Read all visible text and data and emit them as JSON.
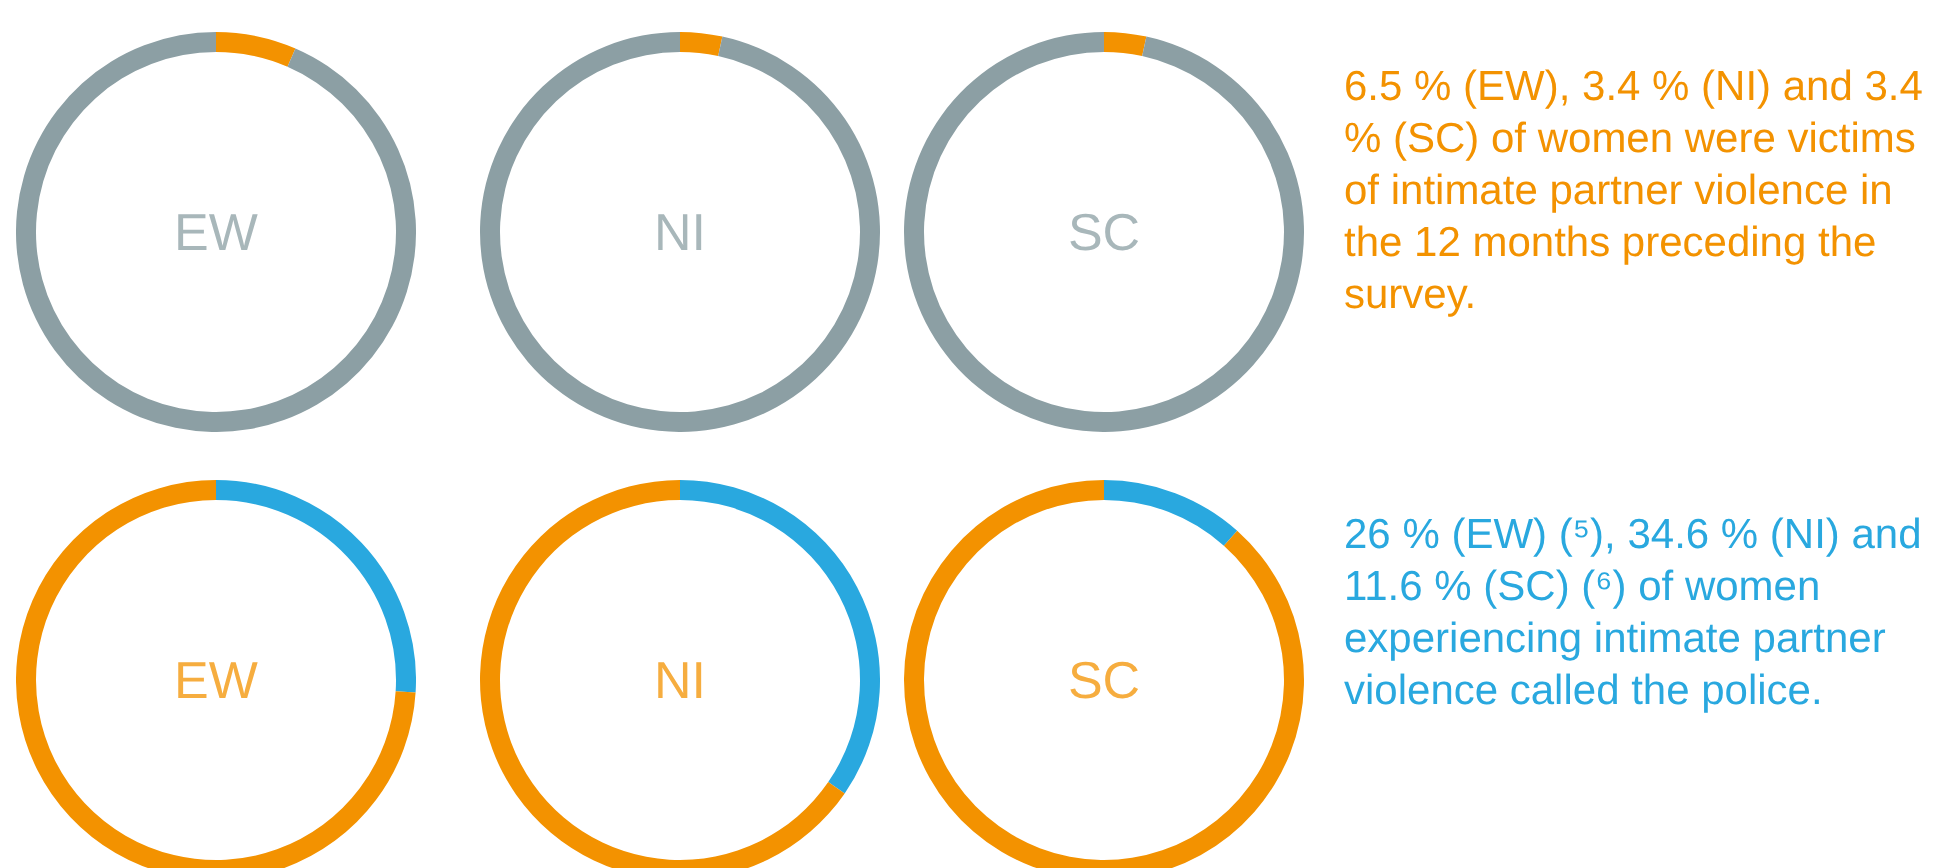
{
  "chart_data": [
    {
      "type": "donut",
      "title": "EW",
      "categories": [
        null,
        null
      ],
      "values": [
        6.5,
        93.5
      ],
      "colors": [
        "#f39200",
        "#8c9fa4"
      ],
      "legend": false
    },
    {
      "type": "donut",
      "title": "NI",
      "categories": [
        null,
        null
      ],
      "values": [
        3.4,
        96.6
      ],
      "colors": [
        "#f39200",
        "#8c9fa4"
      ],
      "legend": false
    },
    {
      "type": "donut",
      "title": "SC",
      "categories": [
        null,
        null
      ],
      "values": [
        3.4,
        96.6
      ],
      "colors": [
        "#f39200",
        "#8c9fa4"
      ],
      "legend": false,
      "annotations": [
        "6.5 % (EW), 3.4 % (NI) and 3.4 % (SC) of women were victims of intimate partner violence in the 12 months preceding the survey."
      ]
    },
    {
      "type": "donut",
      "title": "EW",
      "categories": [
        null,
        null
      ],
      "values": [
        26,
        74
      ],
      "colors": [
        "#29a8df",
        "#f39200"
      ],
      "legend": false
    },
    {
      "type": "donut",
      "title": "NI",
      "categories": [
        null,
        null
      ],
      "values": [
        34.6,
        65.4
      ],
      "colors": [
        "#29a8df",
        "#f39200"
      ],
      "legend": false
    },
    {
      "type": "donut",
      "title": "SC",
      "categories": [
        null,
        null
      ],
      "values": [
        11.6,
        88.4
      ],
      "colors": [
        "#29a8df",
        "#f39200"
      ],
      "legend": false,
      "annotations": [
        "26 % (EW) (⁵), 34.6 % (NI) and 11.6 % (SC) (⁶) of women experiencing intimate partner violence called the police."
      ]
    }
  ]
}
